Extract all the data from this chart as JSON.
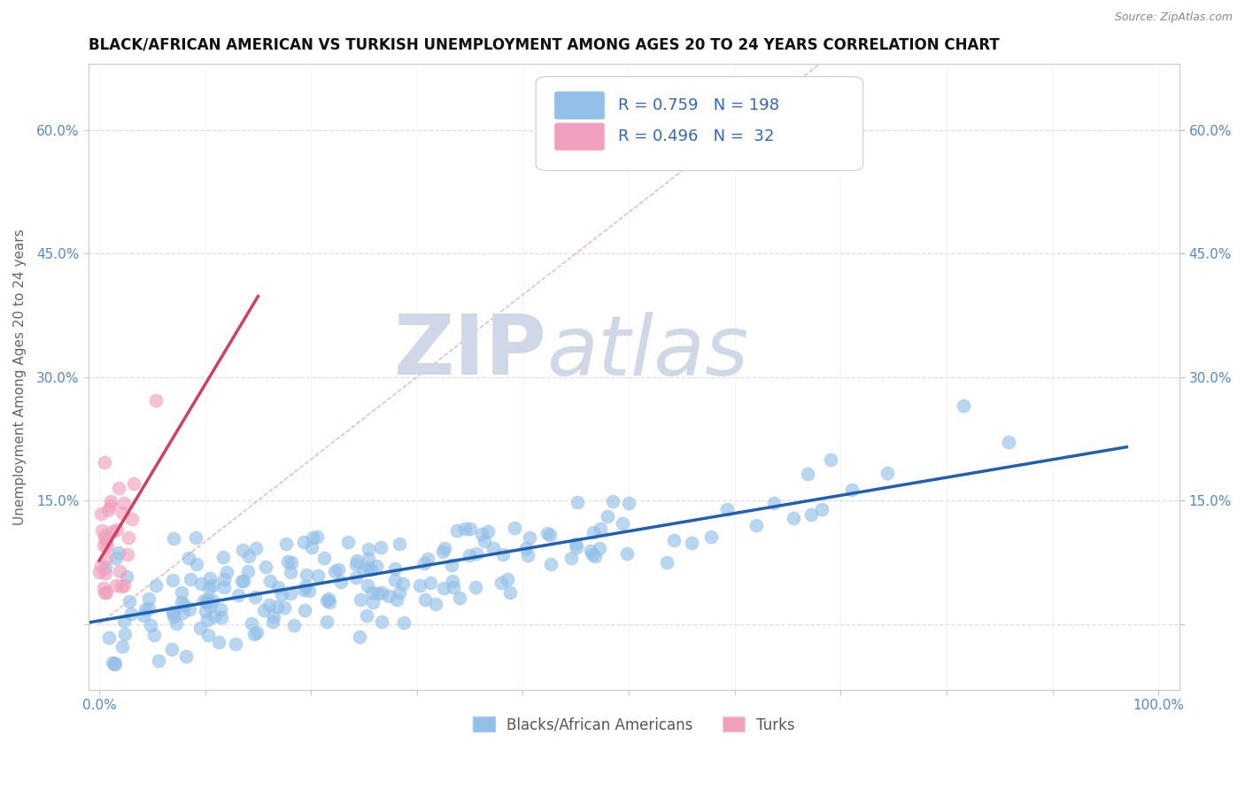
{
  "title": "BLACK/AFRICAN AMERICAN VS TURKISH UNEMPLOYMENT AMONG AGES 20 TO 24 YEARS CORRELATION CHART",
  "source_text": "Source: ZipAtlas.com",
  "ylabel": "Unemployment Among Ages 20 to 24 years",
  "xlim": [
    -0.01,
    1.02
  ],
  "ylim": [
    -0.08,
    0.68
  ],
  "xticks": [
    0.0,
    0.1,
    0.2,
    0.3,
    0.4,
    0.5,
    0.6,
    0.7,
    0.8,
    0.9,
    1.0
  ],
  "xticklabels": [
    "0.0%",
    "",
    "",
    "",
    "",
    "",
    "",
    "",
    "",
    "",
    "100.0%"
  ],
  "yticks": [
    0.0,
    0.15,
    0.3,
    0.45,
    0.6
  ],
  "yticklabels": [
    "",
    "15.0%",
    "30.0%",
    "45.0%",
    "60.0%"
  ],
  "blue_color": "#92C0E8",
  "pink_color": "#F0A0BE",
  "blue_line_color": "#2060B0",
  "pink_line_color": "#D04060",
  "ref_line_color": "#D8D8D8",
  "grid_color": "#DEDEDE",
  "background_color": "#FFFFFF",
  "watermark_zip": "ZIP",
  "watermark_atlas": "atlas",
  "watermark_color": "#D0D8E8",
  "tick_color": "#5588CC",
  "legend_text_color": "#3366BB",
  "legend_label_color": "#555555",
  "legend_label_blue": "Blacks/African Americans",
  "legend_label_pink": "Turks",
  "legend_R_blue": "0.759",
  "legend_N_blue": "198",
  "legend_R_pink": "0.496",
  "legend_N_pink": "32",
  "title_fontsize": 12,
  "axis_label_fontsize": 11,
  "tick_fontsize": 11,
  "legend_fontsize": 13,
  "blue_N": 198,
  "pink_N": 32,
  "blue_scatter_seed": 42,
  "pink_scatter_seed": 123
}
